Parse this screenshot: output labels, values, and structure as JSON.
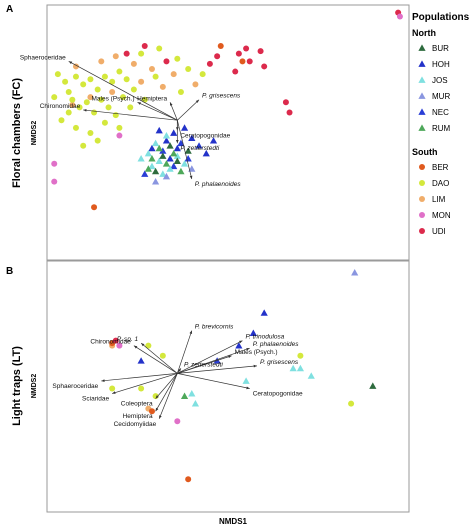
{
  "figure": {
    "x_axis_label": "NMDS1",
    "legend": {
      "title": "Populations",
      "groups": [
        {
          "name": "North",
          "shape": "triangle",
          "items": [
            {
              "label": "BUR",
              "color": "#2e6b3e"
            },
            {
              "label": "HOH",
              "color": "#2332c9"
            },
            {
              "label": "JOS",
              "color": "#7fe0e0"
            },
            {
              "label": "MUR",
              "color": "#8a96e0"
            },
            {
              "label": "NEC",
              "color": "#2a3ed6"
            },
            {
              "label": "RUM",
              "color": "#4ea85a"
            }
          ]
        },
        {
          "name": "South",
          "shape": "circle",
          "items": [
            {
              "label": "BER",
              "color": "#e05a1e"
            },
            {
              "label": "DAO",
              "color": "#d4e83c"
            },
            {
              "label": "LIM",
              "color": "#f0ad6a"
            },
            {
              "label": "MON",
              "color": "#e070c8"
            },
            {
              "label": "UDI",
              "color": "#dc2a4c"
            }
          ]
        }
      ]
    }
  },
  "chart_data": [
    {
      "type": "scatter",
      "panel": "A",
      "title": "Floral chambers (FC)",
      "ylabel": "NMDS2",
      "xlim": [
        0,
        1
      ],
      "ylim": [
        0,
        1
      ],
      "grid": false,
      "vectors": [
        {
          "label": "Sphaeroceridae",
          "x": 0.06,
          "y": 0.78
        },
        {
          "label": "Males (Psych.)",
          "x": 0.25,
          "y": 0.62
        },
        {
          "label": "Chironomidae",
          "x": 0.1,
          "y": 0.59
        },
        {
          "label": "Hemiptera",
          "x": 0.34,
          "y": 0.62
        },
        {
          "label": "P. grisescens",
          "x": 0.42,
          "y": 0.63
        },
        {
          "label": "Ceratopogonidae",
          "x": 0.36,
          "y": 0.51
        },
        {
          "label": "P. zetterstedti",
          "x": 0.36,
          "y": 0.46
        },
        {
          "label": "P. phalaenoides",
          "x": 0.4,
          "y": 0.32
        }
      ],
      "points": [
        {
          "pop": "UDI",
          "x": 0.97,
          "y": 0.97
        },
        {
          "pop": "MON",
          "x": 0.975,
          "y": 0.955
        },
        {
          "pop": "UDI",
          "x": 0.45,
          "y": 0.77
        },
        {
          "pop": "UDI",
          "x": 0.47,
          "y": 0.8
        },
        {
          "pop": "UDI",
          "x": 0.53,
          "y": 0.81
        },
        {
          "pop": "UDI",
          "x": 0.55,
          "y": 0.83
        },
        {
          "pop": "UDI",
          "x": 0.59,
          "y": 0.82
        },
        {
          "pop": "UDI",
          "x": 0.56,
          "y": 0.78
        },
        {
          "pop": "UDI",
          "x": 0.52,
          "y": 0.74
        },
        {
          "pop": "UDI",
          "x": 0.6,
          "y": 0.76
        },
        {
          "pop": "UDI",
          "x": 0.66,
          "y": 0.62
        },
        {
          "pop": "UDI",
          "x": 0.67,
          "y": 0.58
        },
        {
          "pop": "UDI",
          "x": 0.22,
          "y": 0.81
        },
        {
          "pop": "UDI",
          "x": 0.27,
          "y": 0.84
        },
        {
          "pop": "UDI",
          "x": 0.33,
          "y": 0.78
        },
        {
          "pop": "BER",
          "x": 0.48,
          "y": 0.84
        },
        {
          "pop": "BER",
          "x": 0.13,
          "y": 0.21
        },
        {
          "pop": "BER",
          "x": 0.54,
          "y": 0.78
        },
        {
          "pop": "MON",
          "x": 0.02,
          "y": 0.31
        },
        {
          "pop": "MON",
          "x": 0.02,
          "y": 0.38
        },
        {
          "pop": "MON",
          "x": 0.2,
          "y": 0.49
        },
        {
          "pop": "LIM",
          "x": 0.08,
          "y": 0.76
        },
        {
          "pop": "LIM",
          "x": 0.15,
          "y": 0.78
        },
        {
          "pop": "LIM",
          "x": 0.19,
          "y": 0.8
        },
        {
          "pop": "LIM",
          "x": 0.24,
          "y": 0.77
        },
        {
          "pop": "LIM",
          "x": 0.29,
          "y": 0.75
        },
        {
          "pop": "LIM",
          "x": 0.35,
          "y": 0.73
        },
        {
          "pop": "LIM",
          "x": 0.41,
          "y": 0.69
        },
        {
          "pop": "LIM",
          "x": 0.18,
          "y": 0.66
        },
        {
          "pop": "LIM",
          "x": 0.26,
          "y": 0.7
        },
        {
          "pop": "LIM",
          "x": 0.32,
          "y": 0.68
        },
        {
          "pop": "LIM",
          "x": 0.07,
          "y": 0.61
        },
        {
          "pop": "LIM",
          "x": 0.12,
          "y": 0.64
        },
        {
          "pop": "DAO",
          "x": 0.03,
          "y": 0.73
        },
        {
          "pop": "DAO",
          "x": 0.05,
          "y": 0.7
        },
        {
          "pop": "DAO",
          "x": 0.06,
          "y": 0.66
        },
        {
          "pop": "DAO",
          "x": 0.08,
          "y": 0.72
        },
        {
          "pop": "DAO",
          "x": 0.1,
          "y": 0.69
        },
        {
          "pop": "DAO",
          "x": 0.12,
          "y": 0.71
        },
        {
          "pop": "DAO",
          "x": 0.14,
          "y": 0.67
        },
        {
          "pop": "DAO",
          "x": 0.16,
          "y": 0.72
        },
        {
          "pop": "DAO",
          "x": 0.18,
          "y": 0.7
        },
        {
          "pop": "DAO",
          "x": 0.2,
          "y": 0.74
        },
        {
          "pop": "DAO",
          "x": 0.22,
          "y": 0.71
        },
        {
          "pop": "DAO",
          "x": 0.24,
          "y": 0.67
        },
        {
          "pop": "DAO",
          "x": 0.07,
          "y": 0.63
        },
        {
          "pop": "DAO",
          "x": 0.09,
          "y": 0.6
        },
        {
          "pop": "DAO",
          "x": 0.11,
          "y": 0.62
        },
        {
          "pop": "DAO",
          "x": 0.13,
          "y": 0.58
        },
        {
          "pop": "DAO",
          "x": 0.15,
          "y": 0.63
        },
        {
          "pop": "DAO",
          "x": 0.17,
          "y": 0.6
        },
        {
          "pop": "DAO",
          "x": 0.21,
          "y": 0.64
        },
        {
          "pop": "DAO",
          "x": 0.04,
          "y": 0.55
        },
        {
          "pop": "DAO",
          "x": 0.08,
          "y": 0.52
        },
        {
          "pop": "DAO",
          "x": 0.12,
          "y": 0.5
        },
        {
          "pop": "DAO",
          "x": 0.16,
          "y": 0.54
        },
        {
          "pop": "DAO",
          "x": 0.19,
          "y": 0.57
        },
        {
          "pop": "DAO",
          "x": 0.23,
          "y": 0.6
        },
        {
          "pop": "DAO",
          "x": 0.27,
          "y": 0.63
        },
        {
          "pop": "DAO",
          "x": 0.3,
          "y": 0.72
        },
        {
          "pop": "DAO",
          "x": 0.36,
          "y": 0.79
        },
        {
          "pop": "DAO",
          "x": 0.39,
          "y": 0.75
        },
        {
          "pop": "DAO",
          "x": 0.43,
          "y": 0.73
        },
        {
          "pop": "DAO",
          "x": 0.1,
          "y": 0.45
        },
        {
          "pop": "DAO",
          "x": 0.14,
          "y": 0.47
        },
        {
          "pop": "DAO",
          "x": 0.06,
          "y": 0.58
        },
        {
          "pop": "DAO",
          "x": 0.02,
          "y": 0.64
        },
        {
          "pop": "DAO",
          "x": 0.26,
          "y": 0.81
        },
        {
          "pop": "DAO",
          "x": 0.31,
          "y": 0.83
        },
        {
          "pop": "DAO",
          "x": 0.37,
          "y": 0.66
        },
        {
          "pop": "DAO",
          "x": 0.2,
          "y": 0.52
        },
        {
          "pop": "HOH",
          "x": 0.35,
          "y": 0.5
        },
        {
          "pop": "HOH",
          "x": 0.38,
          "y": 0.52
        },
        {
          "pop": "HOH",
          "x": 0.33,
          "y": 0.47
        },
        {
          "pop": "HOH",
          "x": 0.36,
          "y": 0.44
        },
        {
          "pop": "HOH",
          "x": 0.4,
          "y": 0.48
        },
        {
          "pop": "HOH",
          "x": 0.31,
          "y": 0.51
        },
        {
          "pop": "HOH",
          "x": 0.29,
          "y": 0.44
        },
        {
          "pop": "HOH",
          "x": 0.46,
          "y": 0.47
        },
        {
          "pop": "HOH",
          "x": 0.44,
          "y": 0.42
        },
        {
          "pop": "HOH",
          "x": 0.34,
          "y": 0.4
        },
        {
          "pop": "NEC",
          "x": 0.37,
          "y": 0.46
        },
        {
          "pop": "NEC",
          "x": 0.32,
          "y": 0.43
        },
        {
          "pop": "NEC",
          "x": 0.39,
          "y": 0.4
        },
        {
          "pop": "NEC",
          "x": 0.42,
          "y": 0.45
        },
        {
          "pop": "NEC",
          "x": 0.35,
          "y": 0.37
        },
        {
          "pop": "NEC",
          "x": 0.27,
          "y": 0.34
        },
        {
          "pop": "JOS",
          "x": 0.3,
          "y": 0.46
        },
        {
          "pop": "JOS",
          "x": 0.33,
          "y": 0.49
        },
        {
          "pop": "JOS",
          "x": 0.28,
          "y": 0.42
        },
        {
          "pop": "JOS",
          "x": 0.31,
          "y": 0.39
        },
        {
          "pop": "JOS",
          "x": 0.34,
          "y": 0.36
        },
        {
          "pop": "JOS",
          "x": 0.29,
          "y": 0.37
        },
        {
          "pop": "JOS",
          "x": 0.38,
          "y": 0.38
        },
        {
          "pop": "JOS",
          "x": 0.26,
          "y": 0.4
        },
        {
          "pop": "JOS",
          "x": 0.32,
          "y": 0.34
        },
        {
          "pop": "JOS",
          "x": 0.36,
          "y": 0.41
        },
        {
          "pop": "RUM",
          "x": 0.31,
          "y": 0.44
        },
        {
          "pop": "RUM",
          "x": 0.35,
          "y": 0.42
        },
        {
          "pop": "RUM",
          "x": 0.33,
          "y": 0.38
        },
        {
          "pop": "RUM",
          "x": 0.29,
          "y": 0.4
        },
        {
          "pop": "RUM",
          "x": 0.37,
          "y": 0.35
        },
        {
          "pop": "RUM",
          "x": 0.28,
          "y": 0.36
        },
        {
          "pop": "BUR",
          "x": 0.32,
          "y": 0.41
        },
        {
          "pop": "BUR",
          "x": 0.34,
          "y": 0.45
        },
        {
          "pop": "BUR",
          "x": 0.3,
          "y": 0.35
        },
        {
          "pop": "BUR",
          "x": 0.36,
          "y": 0.39
        },
        {
          "pop": "BUR",
          "x": 0.39,
          "y": 0.43
        },
        {
          "pop": "MUR",
          "x": 0.33,
          "y": 0.33
        },
        {
          "pop": "MUR",
          "x": 0.3,
          "y": 0.31
        },
        {
          "pop": "MUR",
          "x": 0.4,
          "y": 0.36
        }
      ]
    },
    {
      "type": "scatter",
      "panel": "B",
      "title": "Light traps (LT)",
      "ylabel": "NMDS2",
      "xlim": [
        0,
        1
      ],
      "ylim": [
        0,
        1
      ],
      "grid": false,
      "vectors": [
        {
          "label": "P. brevicornis",
          "x": 0.4,
          "y": 0.72
        },
        {
          "label": "P. sp. 1",
          "x": 0.26,
          "y": 0.67
        },
        {
          "label": "Chironomidae",
          "x": 0.24,
          "y": 0.66
        },
        {
          "label": "P. trinodulosa",
          "x": 0.54,
          "y": 0.68
        },
        {
          "label": "P. phalaenoides",
          "x": 0.56,
          "y": 0.65
        },
        {
          "label": "Males (Psych.)",
          "x": 0.51,
          "y": 0.62
        },
        {
          "label": "P. grisescens",
          "x": 0.58,
          "y": 0.58
        },
        {
          "label": "P. zetterstedti",
          "x": 0.37,
          "y": 0.57
        },
        {
          "label": "Sphaeroceridae",
          "x": 0.15,
          "y": 0.52
        },
        {
          "label": "Sciaridae",
          "x": 0.18,
          "y": 0.47
        },
        {
          "label": "Coleoptera",
          "x": 0.3,
          "y": 0.45
        },
        {
          "label": "Ceratopogonidae",
          "x": 0.56,
          "y": 0.49
        },
        {
          "label": "Hemiptera",
          "x": 0.3,
          "y": 0.4
        },
        {
          "label": "Cecidomyiidae",
          "x": 0.31,
          "y": 0.37
        }
      ],
      "points": [
        {
          "pop": "MUR",
          "x": 0.85,
          "y": 0.95
        },
        {
          "pop": "HOH",
          "x": 0.6,
          "y": 0.79
        },
        {
          "pop": "HOH",
          "x": 0.57,
          "y": 0.71
        },
        {
          "pop": "HOH",
          "x": 0.53,
          "y": 0.66
        },
        {
          "pop": "HOH",
          "x": 0.26,
          "y": 0.6
        },
        {
          "pop": "NEC",
          "x": 0.47,
          "y": 0.6
        },
        {
          "pop": "JOS",
          "x": 0.68,
          "y": 0.57
        },
        {
          "pop": "JOS",
          "x": 0.7,
          "y": 0.57
        },
        {
          "pop": "JOS",
          "x": 0.55,
          "y": 0.52
        },
        {
          "pop": "JOS",
          "x": 0.73,
          "y": 0.54
        },
        {
          "pop": "JOS",
          "x": 0.4,
          "y": 0.47
        },
        {
          "pop": "JOS",
          "x": 0.41,
          "y": 0.43
        },
        {
          "pop": "RUM",
          "x": 0.38,
          "y": 0.46
        },
        {
          "pop": "BUR",
          "x": 0.9,
          "y": 0.5
        },
        {
          "pop": "DAO",
          "x": 0.7,
          "y": 0.62
        },
        {
          "pop": "DAO",
          "x": 0.84,
          "y": 0.43
        },
        {
          "pop": "DAO",
          "x": 0.28,
          "y": 0.66
        },
        {
          "pop": "DAO",
          "x": 0.32,
          "y": 0.62
        },
        {
          "pop": "DAO",
          "x": 0.3,
          "y": 0.46
        },
        {
          "pop": "DAO",
          "x": 0.26,
          "y": 0.49
        },
        {
          "pop": "DAO",
          "x": 0.18,
          "y": 0.49
        },
        {
          "pop": "LIM",
          "x": 0.18,
          "y": 0.66
        },
        {
          "pop": "LIM",
          "x": 0.28,
          "y": 0.41
        },
        {
          "pop": "MON",
          "x": 0.36,
          "y": 0.36
        },
        {
          "pop": "MON",
          "x": 0.2,
          "y": 0.66
        },
        {
          "pop": "BER",
          "x": 0.18,
          "y": 0.67
        },
        {
          "pop": "BER",
          "x": 0.29,
          "y": 0.4
        },
        {
          "pop": "BER",
          "x": 0.39,
          "y": 0.13
        },
        {
          "pop": "UDI",
          "x": 0.19,
          "y": 0.68
        }
      ]
    }
  ]
}
